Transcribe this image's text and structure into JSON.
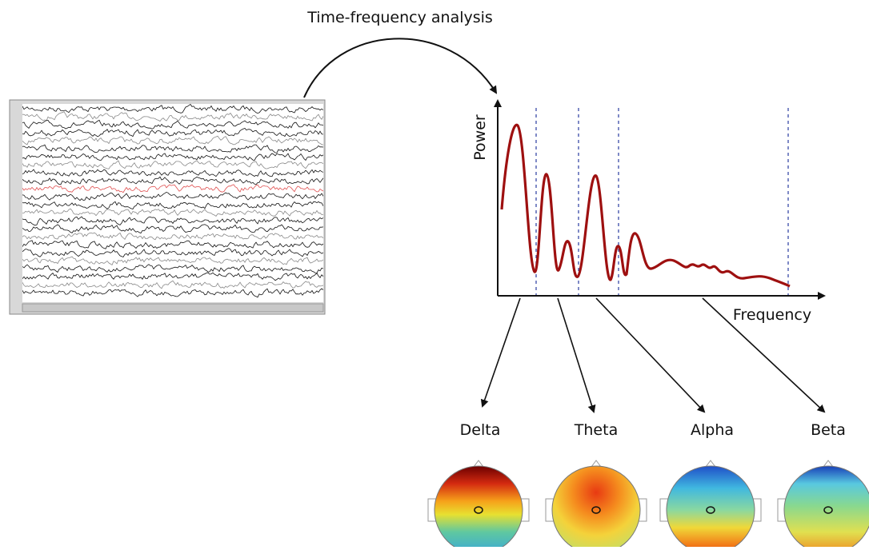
{
  "title": "Time-frequency analysis",
  "spectrum": {
    "y_label": "Power",
    "x_label": "Frequency"
  },
  "bands": [
    {
      "label": "Delta"
    },
    {
      "label": "Theta"
    },
    {
      "label": "Alpha"
    },
    {
      "label": "Beta"
    }
  ]
}
